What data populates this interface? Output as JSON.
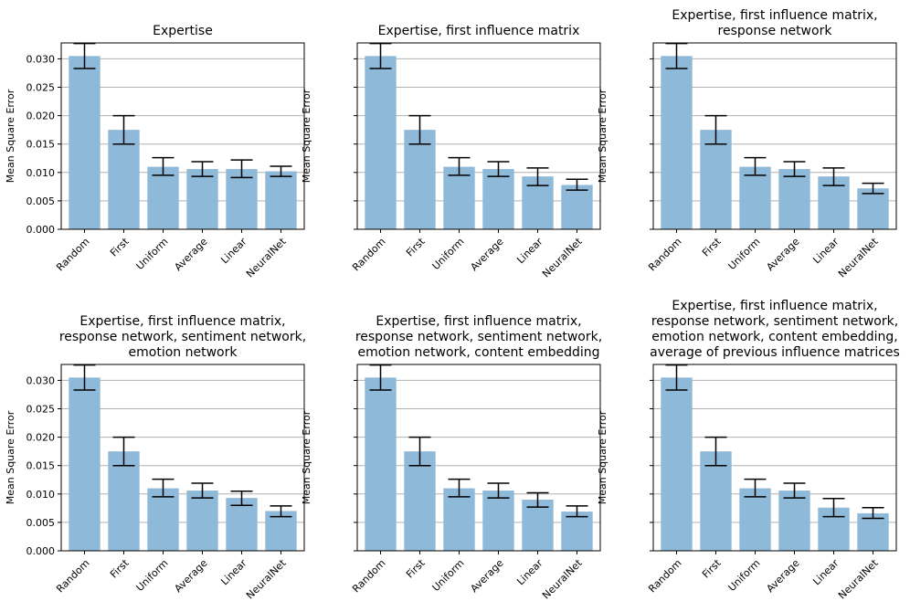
{
  "chart_data": [
    {
      "type": "bar",
      "title": [
        "Expertise"
      ],
      "ylabel": "Mean Square Error",
      "categories": [
        "Random",
        "First",
        "Uniform",
        "Average",
        "Linear",
        "NeuralNet"
      ],
      "values": [
        0.0305,
        0.0175,
        0.011,
        0.0106,
        0.0106,
        0.0102
      ],
      "err_low": [
        0.0283,
        0.015,
        0.0095,
        0.0093,
        0.0091,
        0.0093
      ],
      "err_high": [
        0.0327,
        0.02,
        0.0126,
        0.0119,
        0.0122,
        0.0111
      ],
      "yticks": [
        "0.000",
        "0.005",
        "0.010",
        "0.015",
        "0.020",
        "0.025",
        "0.030"
      ],
      "show_ytick_labels": true,
      "ylim": [
        0,
        0.0328
      ],
      "grid": "y"
    },
    {
      "type": "bar",
      "title": [
        "Expertise, first influence matrix"
      ],
      "ylabel": "Mean Square Error",
      "categories": [
        "Random",
        "First",
        "Uniform",
        "Average",
        "Linear",
        "NeuralNet"
      ],
      "values": [
        0.0305,
        0.0175,
        0.011,
        0.0106,
        0.0093,
        0.0078
      ],
      "err_low": [
        0.0283,
        0.015,
        0.0095,
        0.0093,
        0.0077,
        0.0069
      ],
      "err_high": [
        0.0327,
        0.02,
        0.0126,
        0.0119,
        0.0108,
        0.0088
      ],
      "yticks": [
        "0.000",
        "0.005",
        "0.010",
        "0.015",
        "0.020",
        "0.025",
        "0.030"
      ],
      "show_ytick_labels": false,
      "ylim": [
        0,
        0.0328
      ],
      "grid": "y"
    },
    {
      "type": "bar",
      "title": [
        "Expertise, first influence matrix,",
        "response network"
      ],
      "ylabel": "Mean Square Error",
      "categories": [
        "Random",
        "First",
        "Uniform",
        "Average",
        "Linear",
        "NeuralNet"
      ],
      "values": [
        0.0305,
        0.0175,
        0.011,
        0.0106,
        0.0093,
        0.0072
      ],
      "err_low": [
        0.0283,
        0.015,
        0.0095,
        0.0093,
        0.0077,
        0.0063
      ],
      "err_high": [
        0.0327,
        0.02,
        0.0126,
        0.0119,
        0.0108,
        0.0081
      ],
      "yticks": [
        "0.000",
        "0.005",
        "0.010",
        "0.015",
        "0.020",
        "0.025",
        "0.030"
      ],
      "show_ytick_labels": false,
      "ylim": [
        0,
        0.0328
      ],
      "grid": "y"
    },
    {
      "type": "bar",
      "title": [
        "Expertise, first influence matrix,",
        "response network, sentiment network,",
        "emotion network"
      ],
      "ylabel": "Mean Square Error",
      "categories": [
        "Random",
        "First",
        "Uniform",
        "Average",
        "Linear",
        "NeuralNet"
      ],
      "values": [
        0.0305,
        0.0175,
        0.011,
        0.0106,
        0.0093,
        0.007
      ],
      "err_low": [
        0.0283,
        0.015,
        0.0095,
        0.0093,
        0.008,
        0.006
      ],
      "err_high": [
        0.0327,
        0.02,
        0.0126,
        0.0119,
        0.0105,
        0.0079
      ],
      "yticks": [
        "0.000",
        "0.005",
        "0.010",
        "0.015",
        "0.020",
        "0.025",
        "0.030"
      ],
      "show_ytick_labels": true,
      "ylim": [
        0,
        0.0328
      ],
      "grid": "y"
    },
    {
      "type": "bar",
      "title": [
        "Expertise, first influence matrix,",
        "response network, sentiment network,",
        "emotion network, content embedding"
      ],
      "ylabel": "Mean Square Error",
      "categories": [
        "Random",
        "First",
        "Uniform",
        "Average",
        "Linear",
        "NeuralNet"
      ],
      "values": [
        0.0305,
        0.0175,
        0.011,
        0.0106,
        0.009,
        0.0069
      ],
      "err_low": [
        0.0283,
        0.015,
        0.0095,
        0.0093,
        0.0077,
        0.006
      ],
      "err_high": [
        0.0327,
        0.02,
        0.0126,
        0.0119,
        0.0102,
        0.0079
      ],
      "yticks": [
        "0.000",
        "0.005",
        "0.010",
        "0.015",
        "0.020",
        "0.025",
        "0.030"
      ],
      "show_ytick_labels": false,
      "ylim": [
        0,
        0.0328
      ],
      "grid": "y"
    },
    {
      "type": "bar",
      "title": [
        "Expertise, first influence matrix,",
        "response network, sentiment network,",
        "emotion network, content embedding,",
        "average of previous influence matrices"
      ],
      "ylabel": "Mean Square Error",
      "categories": [
        "Random",
        "First",
        "Uniform",
        "Average",
        "Linear",
        "NeuralNet"
      ],
      "values": [
        0.0305,
        0.0175,
        0.011,
        0.0106,
        0.0076,
        0.0066
      ],
      "err_low": [
        0.0283,
        0.015,
        0.0095,
        0.0093,
        0.006,
        0.0057
      ],
      "err_high": [
        0.0327,
        0.02,
        0.0126,
        0.0119,
        0.0092,
        0.0076
      ],
      "yticks": [
        "0.000",
        "0.005",
        "0.010",
        "0.015",
        "0.020",
        "0.025",
        "0.030"
      ],
      "show_ytick_labels": false,
      "ylim": [
        0,
        0.0328
      ],
      "grid": "y"
    }
  ],
  "colors": {
    "bar": "#8fb9d9",
    "grid": "#b0b0b0",
    "axis": "#000000",
    "error": "#000000"
  }
}
